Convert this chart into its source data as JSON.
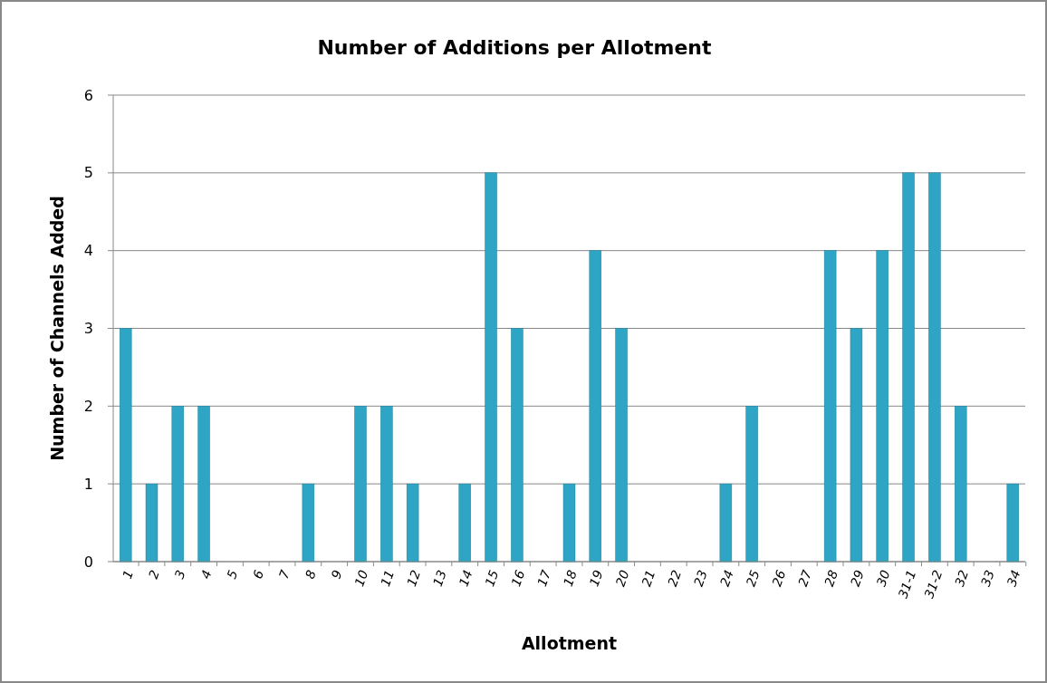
{
  "chart_data": {
    "type": "bar",
    "title": "Number of Additions per Allotment",
    "xlabel": "Allotment",
    "ylabel": "Number of Channels Added",
    "categories": [
      "1",
      "2",
      "3",
      "4",
      "5",
      "6",
      "7",
      "8",
      "9",
      "10",
      "11",
      "12",
      "13",
      "14",
      "15",
      "16",
      "17",
      "18",
      "19",
      "20",
      "21",
      "22",
      "23",
      "24",
      "25",
      "26",
      "27",
      "28",
      "29",
      "30",
      "31-1",
      "31-2",
      "32",
      "33",
      "34"
    ],
    "values": [
      3,
      1,
      2,
      2,
      0,
      0,
      0,
      1,
      0,
      2,
      2,
      1,
      0,
      1,
      5,
      3,
      0,
      1,
      4,
      3,
      0,
      0,
      0,
      1,
      2,
      0,
      0,
      4,
      3,
      4,
      5,
      5,
      2,
      0,
      1
    ],
    "color": "#2ea5c4",
    "ylim": [
      0,
      6
    ],
    "yticks": [
      0,
      1,
      2,
      3,
      4,
      5,
      6
    ],
    "grid": "y"
  }
}
